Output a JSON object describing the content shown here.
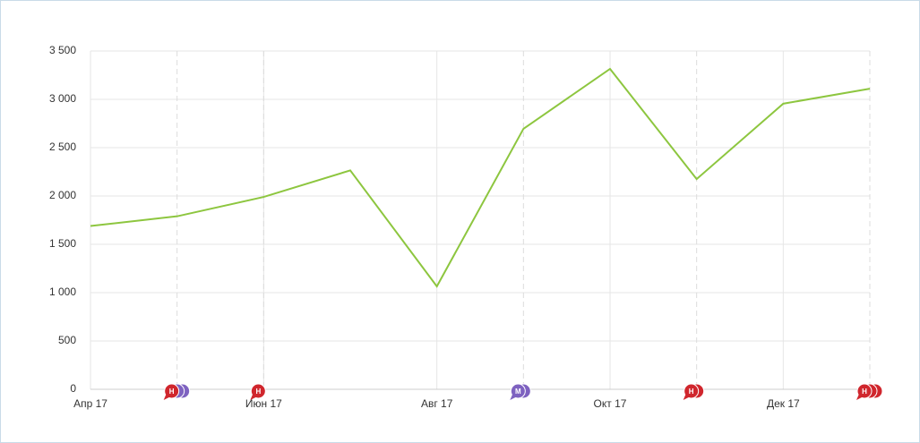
{
  "chart_data": {
    "type": "line",
    "categories": [
      "Апр 17",
      null,
      "Июн 17",
      null,
      "Авг 17",
      null,
      "Окт 17",
      null,
      "Дек 17",
      null
    ],
    "series": [
      {
        "color": "#8dc63f",
        "values": [
          1690,
          1790,
          1990,
          2265,
          1065,
          2695,
          3315,
          2175,
          2955,
          3110
        ]
      }
    ],
    "ylim": [
      0,
      3500
    ],
    "yticks": [
      0,
      500,
      {
        "value": 1000,
        "label": "1 000"
      },
      {
        "value": 1500,
        "label": "1 500"
      },
      {
        "value": 2000,
        "label": "2 000"
      },
      {
        "value": 2500,
        "label": "2 500"
      },
      {
        "value": 3000,
        "label": "3 000"
      },
      {
        "value": 3500,
        "label": "3 500"
      }
    ],
    "grid": true,
    "markers": [
      null,
      {
        "label": "Н",
        "colors": [
          "#d0262d",
          "#7e62c0",
          "#7e62c0"
        ]
      },
      {
        "label": "Н",
        "colors": [
          "#d0262d"
        ]
      },
      null,
      null,
      {
        "label": "М",
        "colors": [
          "#7e62c0",
          "#7e62c0"
        ]
      },
      null,
      {
        "label": "Н",
        "colors": [
          "#d0262d",
          "#d0262d"
        ]
      },
      null,
      {
        "label": "Н",
        "colors": [
          "#d0262d",
          "#d0262d",
          "#d0262d"
        ]
      }
    ]
  }
}
